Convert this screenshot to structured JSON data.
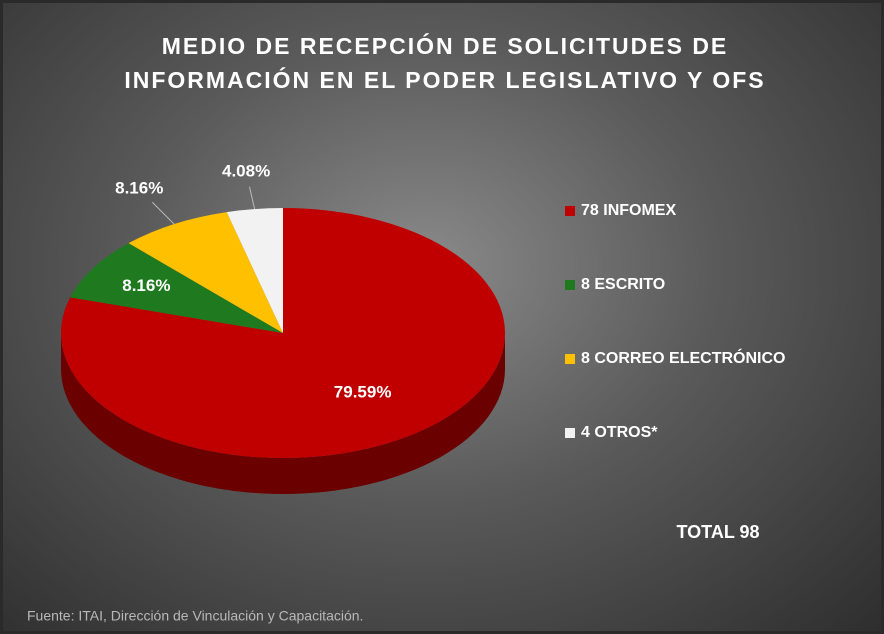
{
  "chart_data": {
    "type": "pie",
    "title": "MEDIO DE RECEPCIÓN DE SOLICITUDES DE INFORMACIÓN EN EL PODER LEGISLATIVO Y OFS",
    "categories": [
      "78 INFOMEX",
      "8 ESCRITO",
      "8 CORREO ELECTRÓNICO",
      "4 OTROS*"
    ],
    "values": [
      79.59,
      8.16,
      8.16,
      4.08
    ],
    "value_labels": [
      "79.59%",
      "8.16%",
      "8.16%",
      "4.08%"
    ],
    "colors": [
      "#c00000",
      "#1f7a1f",
      "#ffc000",
      "#f2f2f2"
    ],
    "legend": "right",
    "annotations": [
      "TOTAL 98",
      "Fuente: ITAI, Dirección de Vinculación y Capacitación."
    ]
  }
}
